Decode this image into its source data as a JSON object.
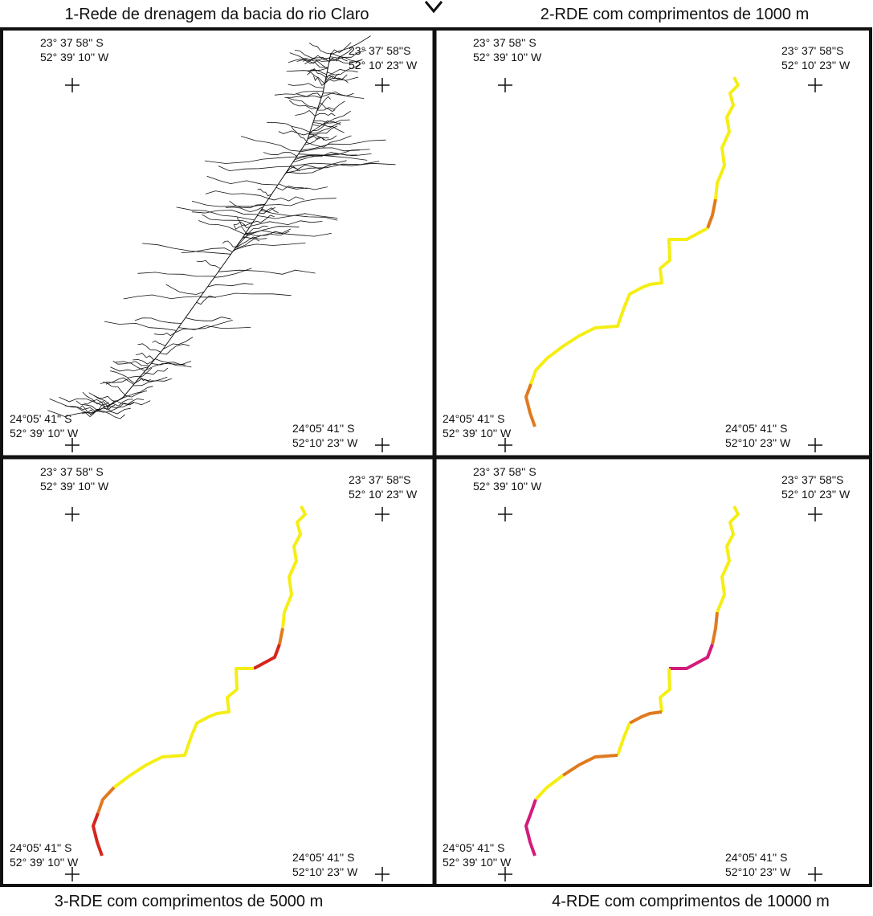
{
  "panels": [
    {
      "title": "1-Rede de drenagem da bacia do rio Claro",
      "corners": {
        "top_left": [
          "23° 37 58'' S",
          "52° 39' 10'' W"
        ],
        "top_right": [
          "23° 37' 58''S",
          "52° 10' 23'' W"
        ],
        "bottom_left": [
          "24°05' 41'' S",
          "52° 39' 10'' W"
        ],
        "bottom_right": [
          "24°05' 41'' S",
          "52°10' 23'' W"
        ]
      }
    },
    {
      "title": "2-RDE com comprimentos de 1000 m",
      "corners": {
        "top_left": [
          "23° 37 58'' S",
          "52° 39' 10'' W"
        ],
        "top_right": [
          "23° 37' 58''S",
          "52° 10' 23'' W"
        ],
        "bottom_left": [
          "24°05' 41'' S",
          "52° 39' 10'' W"
        ],
        "bottom_right": [
          "24°05' 41'' S",
          "52°10' 23'' W"
        ]
      }
    },
    {
      "title": "3-RDE com comprimentos de 5000 m",
      "corners": {
        "top_left": [
          "23° 37 58'' S",
          "52° 39' 10'' W"
        ],
        "top_right": [
          "23° 37' 58''S",
          "52° 10' 23'' W"
        ],
        "bottom_left": [
          "24°05' 41'' S",
          "52° 39' 10'' W"
        ],
        "bottom_right": [
          "24°05' 41'' S",
          "52°10' 23'' W"
        ]
      }
    },
    {
      "title": "4-RDE com comprimentos de 10000 m",
      "corners": {
        "top_left": [
          "23° 37 58'' S",
          "52° 39' 10'' W"
        ],
        "top_right": [
          "23° 37' 58''S",
          "52° 10' 23'' W"
        ],
        "bottom_left": [
          "24°05' 41'' S",
          "52° 39' 10'' W"
        ],
        "bottom_right": [
          "24°05' 41'' S",
          "52°10' 23'' W"
        ]
      }
    }
  ]
}
